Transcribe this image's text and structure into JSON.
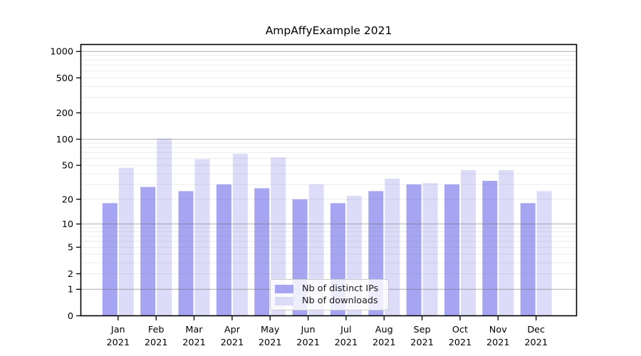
{
  "chart_data": {
    "type": "bar",
    "title": "AmpAffyExample 2021",
    "year_label": "2021",
    "categories": [
      "Jan",
      "Feb",
      "Mar",
      "Apr",
      "May",
      "Jun",
      "Jul",
      "Aug",
      "Sep",
      "Oct",
      "Nov",
      "Dec"
    ],
    "series": [
      {
        "name": "Nb of distinct IPs",
        "color": "#a5a5f2",
        "values": [
          18,
          28,
          25,
          30,
          27,
          20,
          18,
          25,
          30,
          30,
          33,
          18
        ]
      },
      {
        "name": "Nb of downloads",
        "color": "#dcdcf8",
        "values": [
          47,
          102,
          59,
          68,
          62,
          30,
          22,
          35,
          31,
          44,
          44,
          25
        ]
      }
    ],
    "xlabel": "",
    "ylabel": "",
    "yaxis": {
      "scale": "log1p",
      "ylim": [
        0,
        1000
      ],
      "tick_values": [
        0,
        1,
        2,
        5,
        10,
        20,
        50,
        100,
        200,
        500,
        1000
      ],
      "major_gridlines": [
        1,
        10,
        100,
        1000
      ],
      "minor_gridlines": [
        2,
        3,
        4,
        5,
        6,
        7,
        8,
        9,
        20,
        30,
        40,
        50,
        60,
        70,
        80,
        90,
        200,
        300,
        400,
        500,
        600,
        700,
        800,
        900
      ]
    },
    "grid": true,
    "legend_position": "inside-bottom-center"
  },
  "colors": {
    "background": "#ffffff",
    "axis": "#000000",
    "major_grid": "rgba(110,110,110,0.50)",
    "minor_grid": "rgba(130,130,130,0.16)",
    "tick_text": "#000000"
  }
}
